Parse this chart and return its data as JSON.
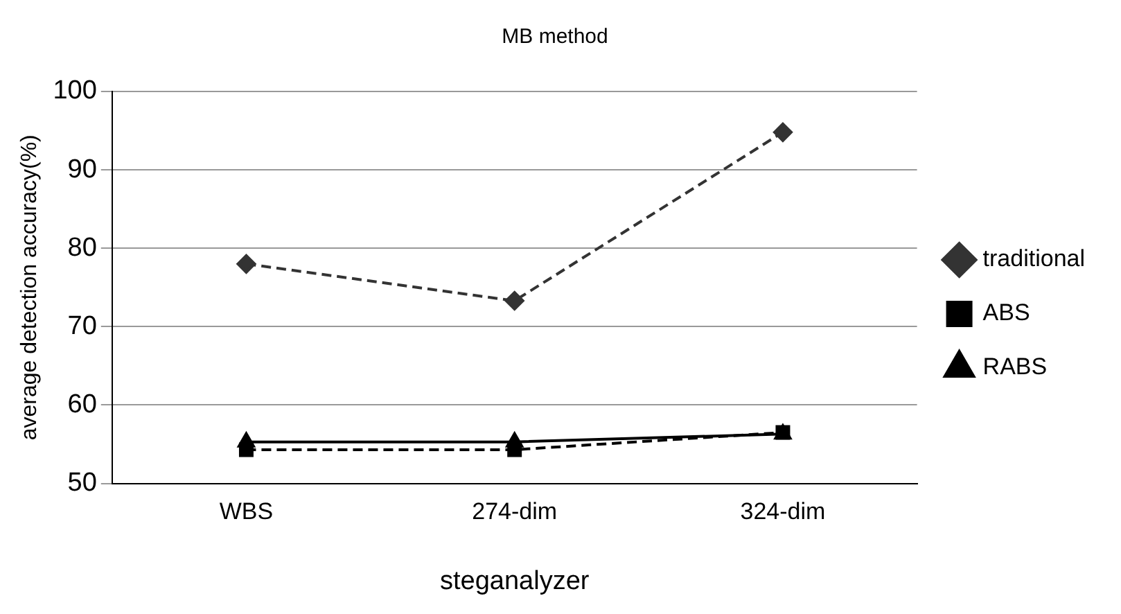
{
  "chart_data": {
    "type": "line",
    "title": "MB method",
    "xlabel": "steganalyzer",
    "ylabel": "average detection accuracy(%)",
    "categories": [
      "WBS",
      "274-dim",
      "324-dim"
    ],
    "series": [
      {
        "name": "traditional",
        "color": "#333333",
        "values": [
          78,
          73.3,
          94.8
        ],
        "marker": "diamond",
        "line_style": "dashed"
      },
      {
        "name": "ABS",
        "color": "#000000",
        "values": [
          54.3,
          54.3,
          56.5
        ],
        "marker": "square",
        "line_style": "dashed"
      },
      {
        "name": "RABS",
        "color": "#000000",
        "values": [
          55.3,
          55.3,
          56.3
        ],
        "marker": "triangle",
        "line_style": "solid"
      }
    ],
    "ylim": [
      50,
      100
    ],
    "yticks": [
      50,
      60,
      70,
      80,
      90,
      100
    ],
    "grid": "y",
    "legend": "right"
  }
}
